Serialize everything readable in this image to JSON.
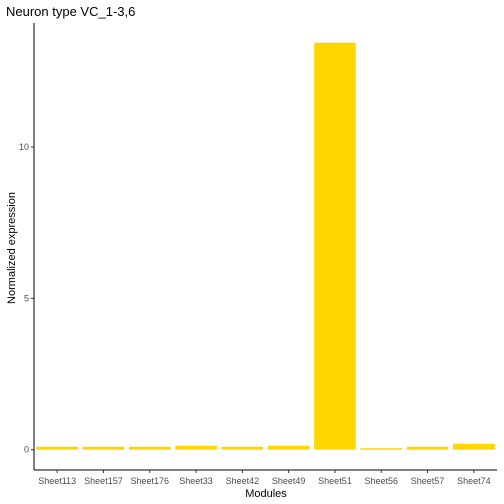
{
  "chart_data": {
    "type": "bar",
    "title": "Neuron type VC_1-3,6",
    "xlabel": "Modules",
    "ylabel": "Normalized expression",
    "categories": [
      "Sheet113",
      "Sheet157",
      "Sheet176",
      "Sheet33",
      "Sheet42",
      "Sheet49",
      "Sheet51",
      "Sheet56",
      "Sheet57",
      "Sheet74"
    ],
    "values": [
      0.1,
      0.1,
      0.1,
      0.13,
      0.1,
      0.13,
      13.45,
      0.05,
      0.1,
      0.2
    ],
    "yticks": [
      0,
      5,
      10
    ],
    "ylim": [
      -0.67,
      14.1
    ],
    "grid": false,
    "legend": "none",
    "bar_color": "#FFD700"
  }
}
